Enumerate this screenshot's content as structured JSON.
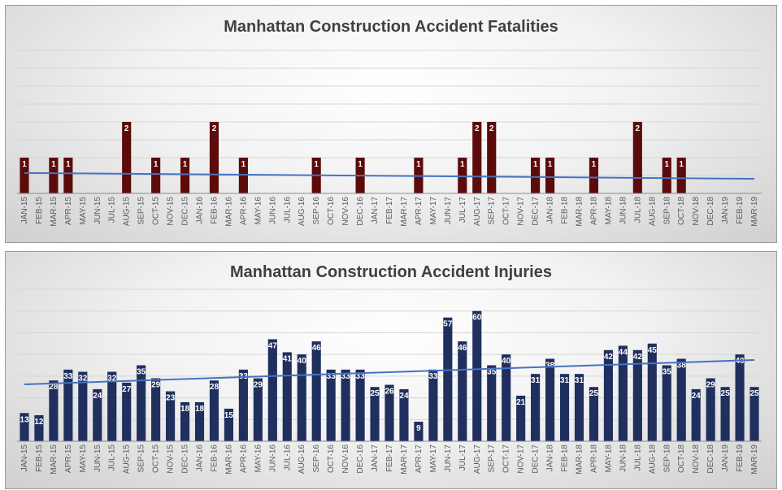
{
  "chart_data": [
    {
      "type": "bar",
      "title": "Manhattan Construction Accident Fatalities",
      "xlabel": "",
      "ylabel": "",
      "ylim": [
        0,
        4
      ],
      "grid": true,
      "trendline": "linear",
      "bar_color": "#5c0a0a",
      "trend_color": "#4472c4",
      "categories": [
        "JAN-15",
        "FEB-15",
        "MAR-15",
        "APR-15",
        "MAY-15",
        "JUN-15",
        "JUL-15",
        "AUG-15",
        "SEP-15",
        "OCT-15",
        "NOV-15",
        "DEC-15",
        "JAN-16",
        "FEB-16",
        "MAR-16",
        "APR-16",
        "MAY-16",
        "JUN-16",
        "JUL-16",
        "AUG-16",
        "SEP-16",
        "OCT-16",
        "NOV-16",
        "DEC-16",
        "JAN-17",
        "FEB-17",
        "MAR-17",
        "APR-17",
        "MAY-17",
        "JUN-17",
        "JUL-17",
        "AUG-17",
        "SEP-17",
        "OCT-17",
        "NOV-17",
        "DEC-17",
        "JAN-18",
        "FEB-18",
        "MAR-18",
        "APR-18",
        "MAY-18",
        "JUN-18",
        "JUL-18",
        "AUG-18",
        "SEP-18",
        "OCT-18",
        "NOV-18",
        "DEC-18",
        "JAN-19",
        "FEB-19",
        "MAR-19"
      ],
      "values": [
        1,
        0,
        1,
        1,
        0,
        0,
        0,
        2,
        0,
        1,
        0,
        1,
        0,
        2,
        0,
        1,
        0,
        0,
        0,
        0,
        1,
        0,
        0,
        1,
        0,
        0,
        0,
        1,
        0,
        0,
        1,
        2,
        2,
        0,
        0,
        1,
        1,
        0,
        0,
        1,
        0,
        0,
        2,
        0,
        1,
        1,
        0,
        0,
        0,
        0,
        0
      ]
    },
    {
      "type": "bar",
      "title": "Manhattan Construction Accident Injuries",
      "xlabel": "",
      "ylabel": "",
      "ylim": [
        0,
        70
      ],
      "grid": true,
      "trendline": "linear",
      "bar_color": "#1f2f5e",
      "trend_color": "#4472c4",
      "categories": [
        "JAN-15",
        "FEB-15",
        "MAR-15",
        "APR-15",
        "MAY-15",
        "JUN-15",
        "JUL-15",
        "AUG-15",
        "SEP-15",
        "OCT-15",
        "NOV-15",
        "DEC-15",
        "JAN-16",
        "FEB-16",
        "MAR-16",
        "APR-16",
        "MAY-16",
        "JUN-16",
        "JUL-16",
        "AUG-16",
        "SEP-16",
        "OCT-16",
        "NOV-16",
        "DEC-16",
        "JAN-17",
        "FEB-17",
        "MAR-17",
        "APR-17",
        "MAY-17",
        "JUN-17",
        "JUL-17",
        "AUG-17",
        "SEP-17",
        "OCT-17",
        "NOV-17",
        "DEC-17",
        "JAN-18",
        "FEB-18",
        "MAR-18",
        "APR-18",
        "MAY-18",
        "JUN-18",
        "JUL-18",
        "AUG-18",
        "SEP-18",
        "OCT-18",
        "NOV-18",
        "DEC-18",
        "JAN-19",
        "FEB-19",
        "MAR-19"
      ],
      "values": [
        13,
        12,
        28,
        33,
        32,
        24,
        32,
        27,
        35,
        29,
        23,
        18,
        18,
        28,
        15,
        33,
        29,
        47,
        41,
        40,
        46,
        33,
        33,
        33,
        25,
        26,
        24,
        9,
        33,
        57,
        46,
        60,
        35,
        40,
        21,
        31,
        38,
        31,
        31,
        25,
        42,
        44,
        42,
        45,
        35,
        38,
        24,
        29,
        25,
        40,
        25
      ]
    }
  ]
}
